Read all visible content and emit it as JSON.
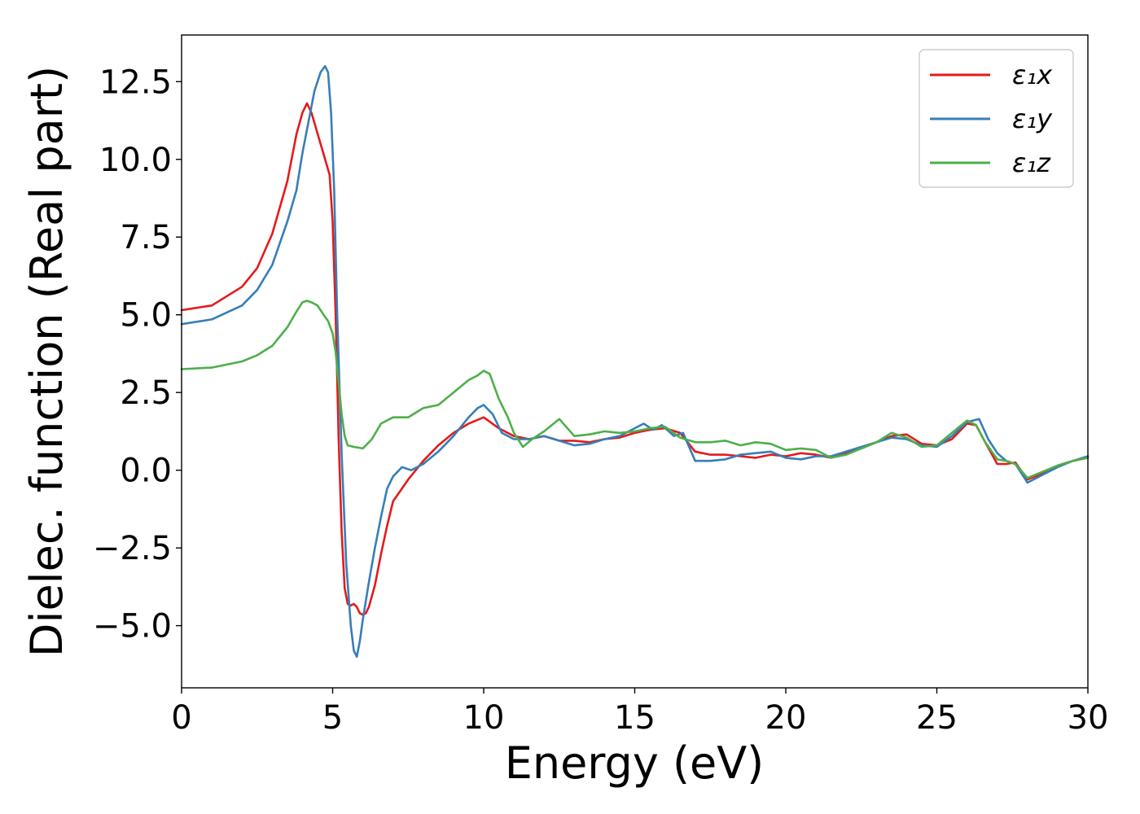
{
  "chart_data": {
    "type": "line",
    "xlabel": "Energy (eV)",
    "ylabel": "Dielec. function (Real part)",
    "xlim": [
      0,
      30
    ],
    "ylim": [
      -7,
      14
    ],
    "xticks": [
      0,
      5,
      10,
      15,
      20,
      25,
      30
    ],
    "xtick_labels": [
      "0",
      "5",
      "10",
      "15",
      "20",
      "25",
      "30"
    ],
    "yticks": [
      -5,
      -2.5,
      0,
      2.5,
      5,
      7.5,
      10,
      12.5
    ],
    "ytick_labels": [
      "−5.0",
      "−2.5",
      "0.0",
      "2.5",
      "5.0",
      "7.5",
      "10.0",
      "12.5"
    ],
    "grid": false,
    "legend_position": "top-right",
    "series": [
      {
        "name": "ε₁x",
        "color": "#e41a1c",
        "x": [
          0,
          1,
          2,
          2.5,
          3,
          3.5,
          3.8,
          4.0,
          4.15,
          4.3,
          4.6,
          4.9,
          5.0,
          5.1,
          5.2,
          5.3,
          5.4,
          5.5,
          5.6,
          5.7,
          5.8,
          5.9,
          6.0,
          6.1,
          6.2,
          6.4,
          6.6,
          6.8,
          7.0,
          7.5,
          8.0,
          8.5,
          9.0,
          9.5,
          10.0,
          10.5,
          11.0,
          11.5,
          12.0,
          12.5,
          13.0,
          13.5,
          14.0,
          14.5,
          15.0,
          15.5,
          16.0,
          16.5,
          17.0,
          17.5,
          18.0,
          18.5,
          19.0,
          19.5,
          20.0,
          20.5,
          21.0,
          21.5,
          22.0,
          22.5,
          23.0,
          23.5,
          24.0,
          24.5,
          25.0,
          25.5,
          26.0,
          26.3,
          26.6,
          27.0,
          27.3,
          27.6,
          28.0,
          28.5,
          29.0,
          29.5,
          30.0
        ],
        "y": [
          5.15,
          5.3,
          5.9,
          6.5,
          7.6,
          9.3,
          10.8,
          11.5,
          11.8,
          11.5,
          10.5,
          9.5,
          8.0,
          5.0,
          1.0,
          -2.0,
          -3.8,
          -4.3,
          -4.35,
          -4.3,
          -4.4,
          -4.6,
          -4.65,
          -4.6,
          -4.4,
          -3.7,
          -2.7,
          -1.8,
          -1.0,
          -0.3,
          0.3,
          0.8,
          1.2,
          1.5,
          1.7,
          1.35,
          1.1,
          1.0,
          1.1,
          0.95,
          0.95,
          0.9,
          1.0,
          1.05,
          1.2,
          1.3,
          1.35,
          1.2,
          0.6,
          0.5,
          0.5,
          0.45,
          0.4,
          0.5,
          0.45,
          0.55,
          0.5,
          0.4,
          0.55,
          0.7,
          0.9,
          1.1,
          1.15,
          0.85,
          0.8,
          1.0,
          1.5,
          1.45,
          0.9,
          0.2,
          0.2,
          0.25,
          -0.3,
          -0.1,
          0.15,
          0.3,
          0.4
        ]
      },
      {
        "name": "ε₁y",
        "color": "#377eb8",
        "x": [
          0,
          1,
          2,
          2.5,
          3,
          3.5,
          3.8,
          4.0,
          4.2,
          4.4,
          4.6,
          4.75,
          4.85,
          4.95,
          5.05,
          5.15,
          5.3,
          5.45,
          5.6,
          5.7,
          5.8,
          5.9,
          6.0,
          6.2,
          6.4,
          6.6,
          6.8,
          7.0,
          7.3,
          7.6,
          8.0,
          8.5,
          9.0,
          9.5,
          9.8,
          10.0,
          10.3,
          10.6,
          11.0,
          11.5,
          12.0,
          12.5,
          13.0,
          13.5,
          14.0,
          14.5,
          15.0,
          15.3,
          15.6,
          15.9,
          16.3,
          16.6,
          17.0,
          17.5,
          18.0,
          18.5,
          19.0,
          19.5,
          20.0,
          20.5,
          21.0,
          21.5,
          22.0,
          22.5,
          23.0,
          23.5,
          24.0,
          24.5,
          25.0,
          25.5,
          26.0,
          26.4,
          26.7,
          27.0,
          27.3,
          27.6,
          28.0,
          28.5,
          29.0,
          29.5,
          30.0
        ],
        "y": [
          4.7,
          4.85,
          5.3,
          5.8,
          6.6,
          8.0,
          9.0,
          10.2,
          11.2,
          12.2,
          12.8,
          13.0,
          12.8,
          11.5,
          9.0,
          5.0,
          0.5,
          -3.0,
          -5.0,
          -5.8,
          -6.0,
          -5.5,
          -4.8,
          -3.6,
          -2.5,
          -1.5,
          -0.6,
          -0.2,
          0.1,
          0.0,
          0.2,
          0.6,
          1.1,
          1.7,
          2.0,
          2.1,
          1.8,
          1.2,
          1.0,
          1.0,
          1.1,
          0.95,
          0.8,
          0.85,
          1.0,
          1.1,
          1.35,
          1.5,
          1.3,
          1.45,
          1.1,
          1.2,
          0.3,
          0.3,
          0.35,
          0.5,
          0.55,
          0.6,
          0.4,
          0.35,
          0.45,
          0.45,
          0.6,
          0.75,
          0.9,
          1.05,
          1.0,
          0.8,
          0.75,
          1.1,
          1.55,
          1.65,
          1.0,
          0.55,
          0.3,
          0.2,
          -0.4,
          -0.15,
          0.1,
          0.3,
          0.45
        ]
      },
      {
        "name": "ε₁z",
        "color": "#4daf4a",
        "x": [
          0,
          1,
          2,
          2.5,
          3,
          3.5,
          3.8,
          4.0,
          4.15,
          4.3,
          4.5,
          4.7,
          4.85,
          5.0,
          5.1,
          5.2,
          5.3,
          5.4,
          5.5,
          5.7,
          6.0,
          6.3,
          6.6,
          7.0,
          7.5,
          8.0,
          8.5,
          9.0,
          9.5,
          9.8,
          10.0,
          10.2,
          10.5,
          10.8,
          11.0,
          11.3,
          11.6,
          12.0,
          12.5,
          13.0,
          13.5,
          14.0,
          14.5,
          15.0,
          15.5,
          16.0,
          16.5,
          17.0,
          17.5,
          18.0,
          18.5,
          19.0,
          19.5,
          20.0,
          20.5,
          21.0,
          21.5,
          22.0,
          22.5,
          23.0,
          23.5,
          24.0,
          24.5,
          25.0,
          25.5,
          26.0,
          26.3,
          26.6,
          27.0,
          27.3,
          27.6,
          28.0,
          28.5,
          29.0,
          29.5,
          30.0
        ],
        "y": [
          3.25,
          3.3,
          3.5,
          3.7,
          4.0,
          4.6,
          5.1,
          5.4,
          5.45,
          5.4,
          5.3,
          5.0,
          4.8,
          4.4,
          3.8,
          2.8,
          1.8,
          1.1,
          0.8,
          0.75,
          0.7,
          1.0,
          1.5,
          1.7,
          1.7,
          2.0,
          2.1,
          2.5,
          2.9,
          3.05,
          3.2,
          3.1,
          2.3,
          1.7,
          1.2,
          0.75,
          1.0,
          1.25,
          1.65,
          1.1,
          1.15,
          1.25,
          1.2,
          1.25,
          1.35,
          1.4,
          1.05,
          0.9,
          0.9,
          0.95,
          0.8,
          0.9,
          0.85,
          0.65,
          0.7,
          0.65,
          0.4,
          0.5,
          0.7,
          0.9,
          1.2,
          1.05,
          0.75,
          0.8,
          1.2,
          1.6,
          1.45,
          0.9,
          0.35,
          0.3,
          0.2,
          -0.25,
          -0.05,
          0.15,
          0.3,
          0.4
        ]
      }
    ]
  }
}
